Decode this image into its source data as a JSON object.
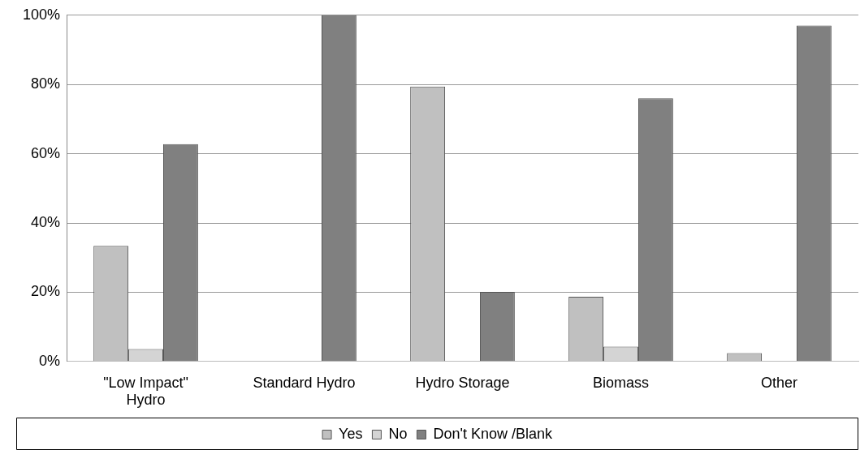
{
  "chart_data": {
    "type": "bar",
    "categories": [
      "\"Low Impact\" Hydro",
      "Standard Hydro",
      "Hydro Storage",
      "Biomass",
      "Other"
    ],
    "series": [
      {
        "name": "Yes",
        "color": "#c0c0c0",
        "values": [
          33.4,
          0,
          79.4,
          18.7,
          2.4
        ]
      },
      {
        "name": "No",
        "color": "#d4d4d4",
        "values": [
          3.6,
          0,
          0,
          4.3,
          0
        ]
      },
      {
        "name": "Don't Know /Blank",
        "color": "#808080",
        "values": [
          62.8,
          100,
          20.1,
          76,
          97
        ]
      }
    ],
    "ylim": [
      0,
      100
    ],
    "yticks": [
      {
        "value": 0,
        "label": "0%"
      },
      {
        "value": 20,
        "label": "20%"
      },
      {
        "value": 40,
        "label": "40%"
      },
      {
        "value": 60,
        "label": "60%"
      },
      {
        "value": 80,
        "label": "80%"
      },
      {
        "value": 100,
        "label": "100%"
      }
    ],
    "grid": "y",
    "legend": "bottom"
  }
}
